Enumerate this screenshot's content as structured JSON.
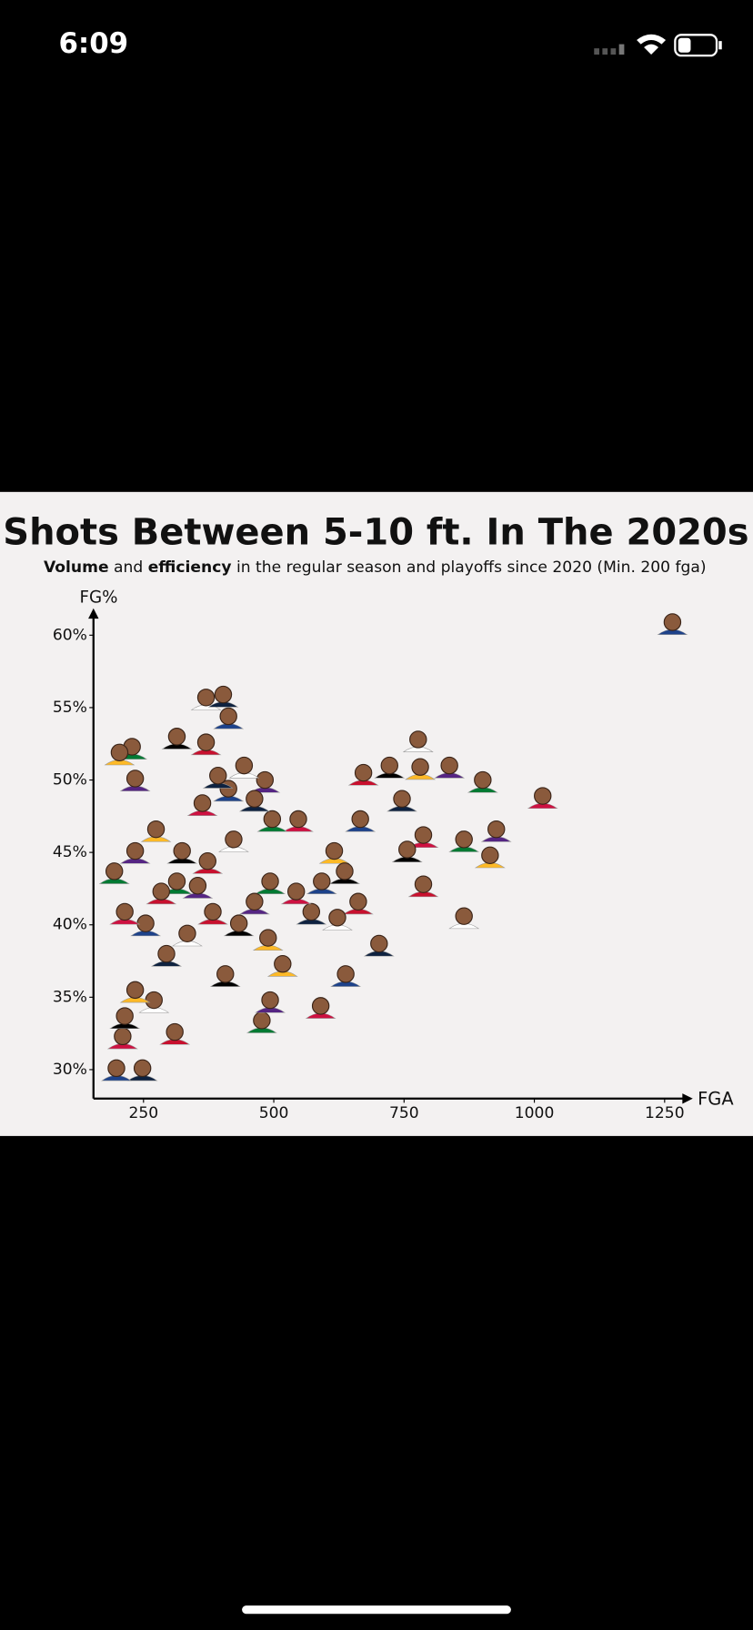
{
  "status_bar": {
    "time": "6:09"
  },
  "chart_data": {
    "type": "scatter",
    "title": "Shots Between 5-10 ft. In The 2020s",
    "subtitle": [
      "Volume",
      "and",
      "efficiency",
      "in the regular season and playoffs since 2020 (Min. 200 fga)"
    ],
    "x_label": "FGA",
    "y_label": "FG%",
    "xlim": [
      154,
      1300
    ],
    "ylim": [
      28,
      61.5
    ],
    "xticks": [
      250,
      500,
      750,
      1000,
      1250
    ],
    "yticks": [
      {
        "value": 30,
        "label": "30%"
      },
      {
        "value": 35,
        "label": "35%"
      },
      {
        "value": 40,
        "label": "40%"
      },
      {
        "value": 45,
        "label": "45%"
      },
      {
        "value": 50,
        "label": "50%"
      },
      {
        "value": 55,
        "label": "55%"
      },
      {
        "value": 60,
        "label": "60%"
      }
    ],
    "color": "#8a5a3c",
    "x": [
      1265,
      1016,
      901,
      837,
      781,
      722,
      672,
      777,
      746,
      666,
      787,
      865,
      927,
      915,
      756,
      787,
      865,
      702,
      638,
      590,
      477,
      493,
      517,
      407,
      310,
      270,
      248,
      198,
      210,
      228,
      234,
      204,
      314,
      370,
      370,
      403,
      413,
      547,
      497,
      483,
      616,
      636,
      662,
      622,
      572,
      592,
      543,
      493,
      463,
      489,
      433,
      383,
      334,
      294,
      254,
      214,
      194,
      234,
      274,
      324,
      373,
      423,
      463,
      413,
      363,
      314,
      354,
      234,
      214,
      284,
      443,
      393
    ],
    "values": [
      60.9,
      48.9,
      50.0,
      51.0,
      50.9,
      51.0,
      50.5,
      52.8,
      48.7,
      47.3,
      46.2,
      45.9,
      46.6,
      44.8,
      45.2,
      42.8,
      40.6,
      38.7,
      36.6,
      34.4,
      33.4,
      34.8,
      37.3,
      36.6,
      32.6,
      34.8,
      30.1,
      30.1,
      32.3,
      52.3,
      50.1,
      51.9,
      53.0,
      52.6,
      55.7,
      55.9,
      54.4,
      47.3,
      47.3,
      50.0,
      45.1,
      43.7,
      41.6,
      40.5,
      40.9,
      43.0,
      42.3,
      43.0,
      41.6,
      39.1,
      40.1,
      40.9,
      39.4,
      38.0,
      40.1,
      40.9,
      43.7,
      45.1,
      46.6,
      45.1,
      44.4,
      45.9,
      48.7,
      49.4,
      48.4,
      43.0,
      42.7,
      35.5,
      33.7,
      42.3,
      51.0,
      50.3
    ]
  }
}
